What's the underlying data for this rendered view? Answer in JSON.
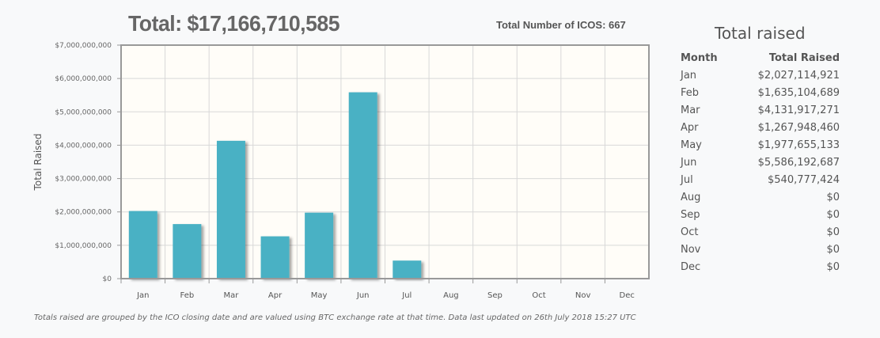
{
  "header": {
    "total": "Total: $17,166,710,585",
    "icos": "Total Number of ICOS: 667"
  },
  "note": "Totals raised are grouped by the ICO closing date and are valued using BTC exchange rate at that time. Data last updated on 26th July 2018 15:27 UTC",
  "chart_data": {
    "type": "bar",
    "ylabel": "Total Raised",
    "xlabel": "",
    "categories": [
      "Jan",
      "Feb",
      "Mar",
      "Apr",
      "May",
      "Jun",
      "Jul",
      "Aug",
      "Sep",
      "Oct",
      "Nov",
      "Dec"
    ],
    "values": [
      2027114921,
      1635104689,
      4131917271,
      1267948460,
      1977655133,
      5586192687,
      540777424,
      0,
      0,
      0,
      0,
      0
    ],
    "ylim": [
      0,
      7000000000
    ],
    "yticks": [
      "$0",
      "$1,000,000,000",
      "$2,000,000,000",
      "$3,000,000,000",
      "$4,000,000,000",
      "$5,000,000,000",
      "$6,000,000,000",
      "$7,000,000,000"
    ],
    "grid": true,
    "colors": {
      "bar": "#4ab1c4",
      "plot_bg": "#fffdf8",
      "grid": "#d8d8d8"
    }
  },
  "table": {
    "title": "Total raised",
    "headers": [
      "Month",
      "Total Raised"
    ],
    "rows": [
      [
        "Jan",
        "$2,027,114,921"
      ],
      [
        "Feb",
        "$1,635,104,689"
      ],
      [
        "Mar",
        "$4,131,917,271"
      ],
      [
        "Apr",
        "$1,267,948,460"
      ],
      [
        "May",
        "$1,977,655,133"
      ],
      [
        "Jun",
        "$5,586,192,687"
      ],
      [
        "Jul",
        "$540,777,424"
      ],
      [
        "Aug",
        "$0"
      ],
      [
        "Sep",
        "$0"
      ],
      [
        "Oct",
        "$0"
      ],
      [
        "Nov",
        "$0"
      ],
      [
        "Dec",
        "$0"
      ]
    ]
  }
}
